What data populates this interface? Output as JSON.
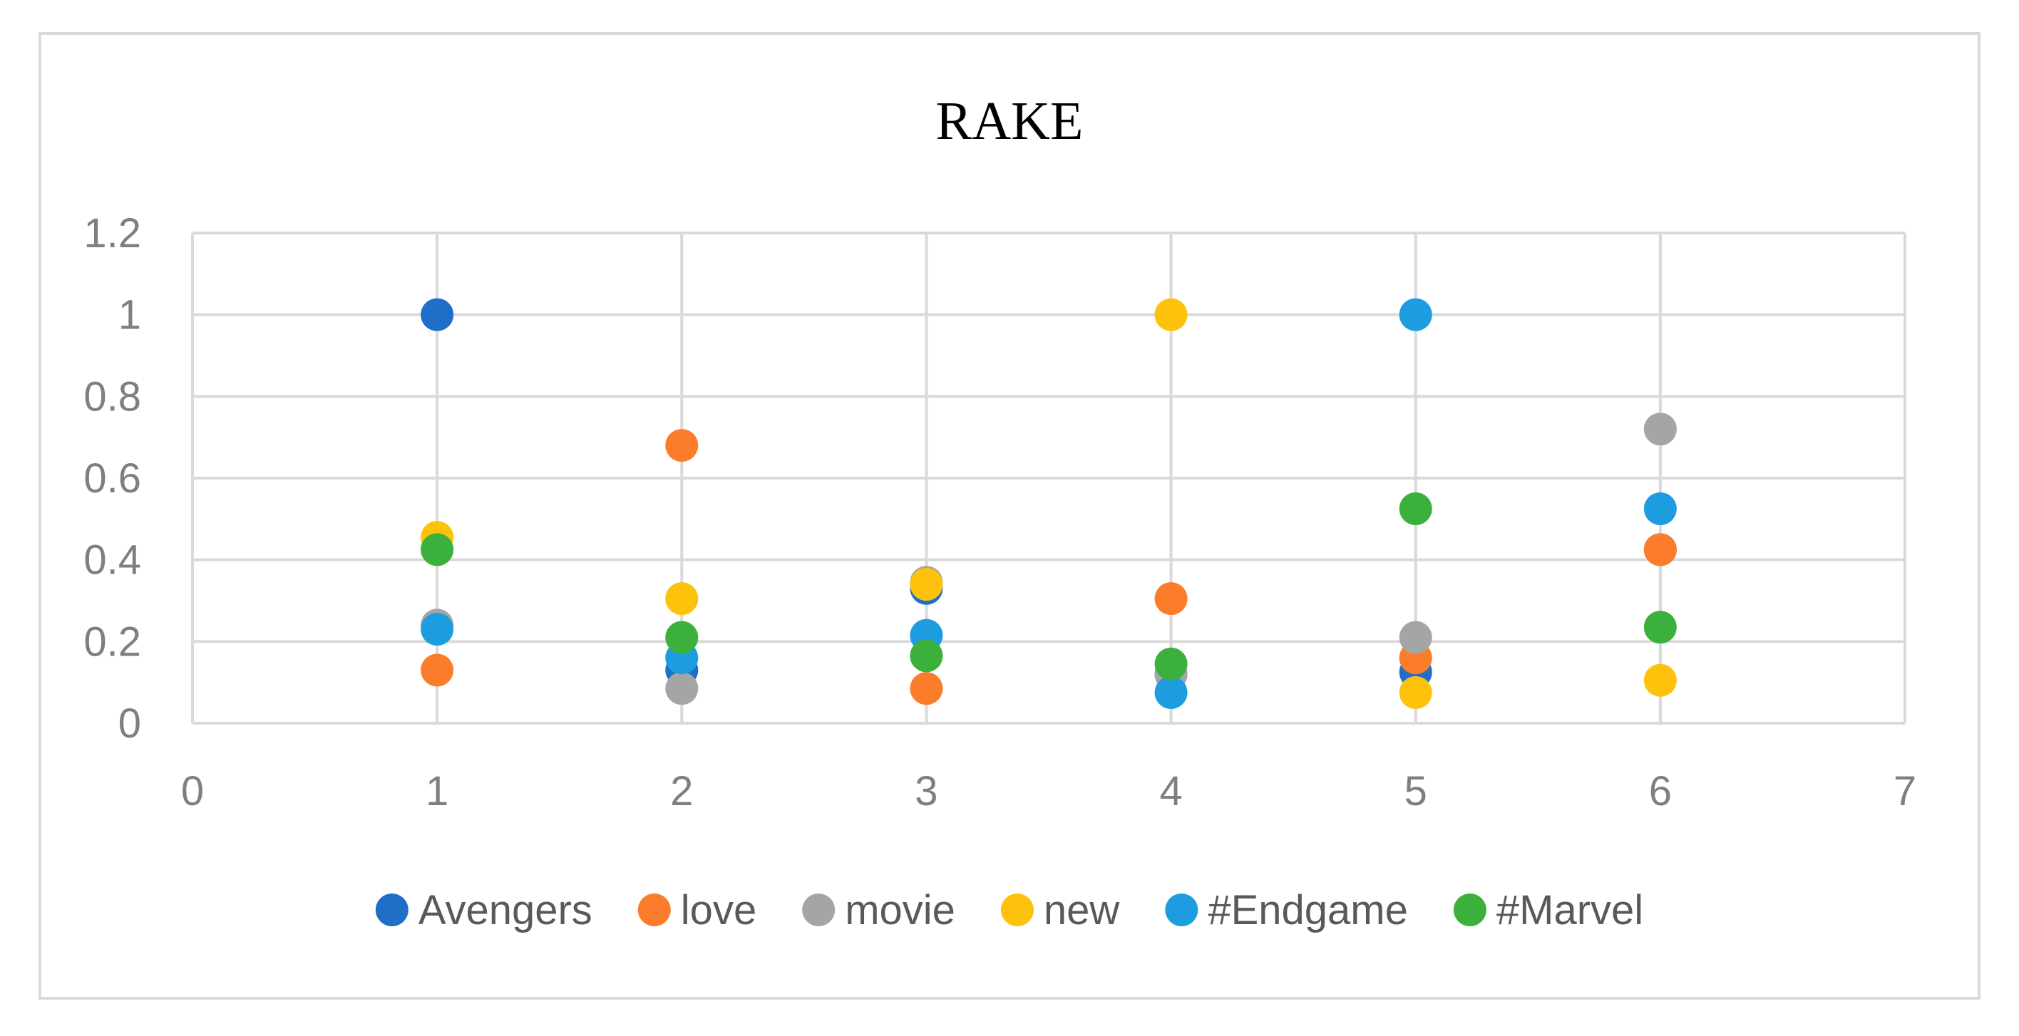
{
  "chart_data": {
    "type": "scatter",
    "title": "RAKE",
    "xlabel": "",
    "ylabel": "",
    "xlim": [
      0,
      7
    ],
    "ylim": [
      0,
      1.2
    ],
    "x_ticks": [
      "0",
      "1",
      "2",
      "3",
      "4",
      "5",
      "6",
      "7"
    ],
    "y_ticks": [
      "0",
      "0.2",
      "0.4",
      "0.6",
      "0.8",
      "1",
      "1.2"
    ],
    "grid": true,
    "legend_position": "bottom",
    "series": [
      {
        "name": "Avengers",
        "color": "#1f6fc9",
        "x": [
          1,
          2,
          3,
          4,
          5,
          6
        ],
        "y": [
          1.0,
          0.13,
          0.33,
          0.12,
          0.125,
          0.425
        ]
      },
      {
        "name": "love",
        "color": "#fb7c2a",
        "x": [
          1,
          2,
          3,
          4,
          5,
          6
        ],
        "y": [
          0.13,
          0.68,
          0.085,
          0.305,
          0.16,
          0.425
        ]
      },
      {
        "name": "movie",
        "color": "#a5a5a5",
        "x": [
          1,
          2,
          3,
          4,
          5,
          6
        ],
        "y": [
          0.24,
          0.085,
          0.345,
          0.12,
          0.21,
          0.72
        ]
      },
      {
        "name": "new",
        "color": "#fdc20b",
        "x": [
          1,
          2,
          3,
          4,
          5,
          6
        ],
        "y": [
          0.455,
          0.305,
          0.34,
          1.0,
          0.075,
          0.105
        ]
      },
      {
        "name": "#Endgame",
        "color": "#1d9de0",
        "x": [
          1,
          2,
          3,
          4,
          5,
          6
        ],
        "y": [
          0.23,
          0.16,
          0.215,
          0.075,
          1.0,
          0.525
        ]
      },
      {
        "name": "#Marvel",
        "color": "#3bb03b",
        "x": [
          1,
          2,
          3,
          4,
          5,
          6
        ],
        "y": [
          0.425,
          0.21,
          0.165,
          0.145,
          0.525,
          0.235
        ]
      }
    ]
  }
}
